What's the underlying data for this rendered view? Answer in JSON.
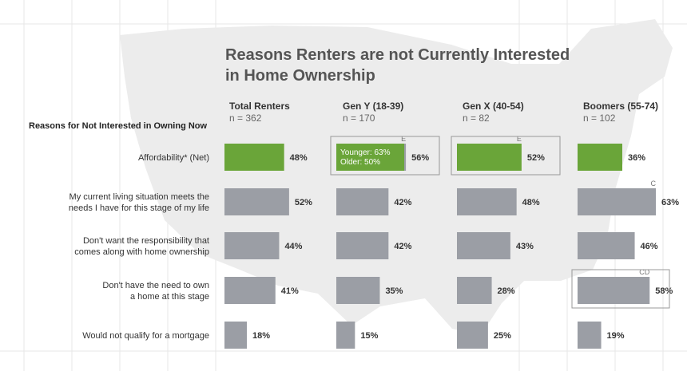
{
  "title_lines": [
    "Reasons Renters are not Currently Interested",
    "in Home Ownership"
  ],
  "row_header": "Reasons for Not Interested in Owning Now",
  "colors": {
    "highlight": "#6aa539",
    "bar": "#9b9ea5",
    "box": "#999999"
  },
  "chart_data": {
    "type": "bar",
    "title": "Reasons Renters are not Currently Interested in Home Ownership",
    "categories": [
      [
        "Affordability* (Net)"
      ],
      [
        "My current living situation meets the",
        "needs I have for this stage of my life"
      ],
      [
        "Don't want the responsibility that",
        "comes along with home ownership"
      ],
      [
        "Don't have the need to own",
        "a home at this stage"
      ],
      [
        "Would not qualify for a mortgage"
      ]
    ],
    "series": [
      {
        "name": "Total Renters",
        "n": "n = 362",
        "values": [
          48,
          52,
          44,
          41,
          18
        ],
        "labels": [
          "48%",
          "52%",
          "44%",
          "41%",
          "18%"
        ],
        "sig": [
          "",
          "",
          "",
          "",
          ""
        ]
      },
      {
        "name": "Gen Y (18-39)",
        "n": "n = 170",
        "values": [
          56,
          42,
          42,
          35,
          15
        ],
        "labels": [
          "56%",
          "42%",
          "42%",
          "35%",
          "15%"
        ],
        "sig": [
          "E",
          "",
          "",
          "",
          ""
        ]
      },
      {
        "name": "Gen X (40-54)",
        "n": "n = 82",
        "values": [
          52,
          48,
          43,
          28,
          25
        ],
        "labels": [
          "52%",
          "48%",
          "43%",
          "28%",
          "25%"
        ],
        "sig": [
          "E",
          "",
          "",
          "",
          ""
        ]
      },
      {
        "name": "Boomers (55-74)",
        "n": "n = 102",
        "values": [
          36,
          63,
          46,
          58,
          19
        ],
        "labels": [
          "36%",
          "63%",
          "46%",
          "58%",
          "19%"
        ],
        "sig": [
          "",
          "C",
          "",
          "CD",
          ""
        ]
      }
    ],
    "annotation": [
      "Younger: 63%",
      "Older: 50%"
    ],
    "highlight_row": 0,
    "boxed_cells": [
      [
        1,
        0
      ],
      [
        2,
        0
      ],
      [
        3,
        3
      ]
    ],
    "xlim": [
      0,
      63
    ]
  }
}
